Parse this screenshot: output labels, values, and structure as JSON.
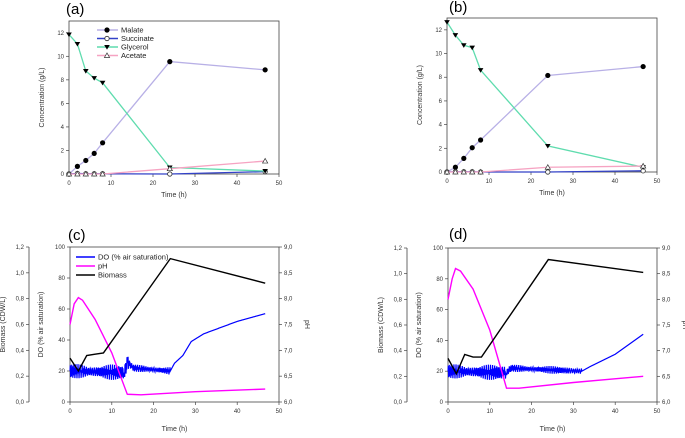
{
  "chart_data": [
    {
      "panel": "(a)",
      "type": "line",
      "xlabel": "Time (h)",
      "ylabel": "Concentration (g/L)",
      "xlim": [
        0,
        50
      ],
      "ylim": [
        0,
        13
      ],
      "xticks": [
        0,
        10,
        20,
        30,
        40,
        50
      ],
      "yticks": [
        0,
        2,
        4,
        6,
        8,
        10,
        12
      ],
      "legend": "top-left",
      "x": [
        0,
        2,
        4,
        6,
        8,
        24,
        46.7
      ],
      "series": [
        {
          "name": "Malate",
          "color": "#b8b0e6",
          "marker": "filled-circle",
          "values": [
            0,
            0.65,
            1.15,
            1.75,
            2.65,
            9.55,
            8.85
          ]
        },
        {
          "name": "Succinate",
          "color": "#3342c8",
          "marker": "open-circle",
          "values": [
            0,
            0.05,
            0.02,
            0.02,
            0.02,
            0,
            0.2
          ]
        },
        {
          "name": "Glycerol",
          "color": "#5fdcae",
          "marker": "filled-triangle-down",
          "values": [
            11.85,
            11.05,
            8.75,
            8.15,
            7.75,
            0.55,
            0.25
          ]
        },
        {
          "name": "Acetate",
          "color": "#f6a3c2",
          "marker": "open-triangle-up",
          "values": [
            0,
            0,
            0,
            0,
            0,
            0.45,
            1.1
          ]
        }
      ]
    },
    {
      "panel": "(b)",
      "type": "line",
      "xlabel": "Time (h)",
      "ylabel": "Concentration (g/L)",
      "xlim": [
        0,
        50
      ],
      "ylim": [
        0,
        13
      ],
      "xticks": [
        0,
        10,
        20,
        30,
        40,
        50
      ],
      "yticks": [
        0,
        2,
        4,
        6,
        8,
        10,
        12
      ],
      "x": [
        0,
        2,
        4,
        6,
        8,
        24,
        46.7
      ],
      "series": [
        {
          "color": "#b8b0e6",
          "marker": "filled-circle",
          "values": [
            0,
            0.4,
            1.15,
            2.05,
            2.7,
            8.15,
            8.9
          ]
        },
        {
          "color": "#3342c8",
          "marker": "open-circle",
          "values": [
            0,
            0.02,
            0.02,
            0.02,
            0,
            0,
            0.1
          ]
        },
        {
          "color": "#5fdcae",
          "marker": "filled-triangle-down",
          "values": [
            12.65,
            11.55,
            10.7,
            10.5,
            8.6,
            2.2,
            0.4
          ]
        },
        {
          "color": "#f6a3c2",
          "marker": "open-triangle-up",
          "values": [
            0,
            0,
            0,
            0,
            0,
            0.4,
            0.5
          ]
        }
      ]
    },
    {
      "panel": "(c)",
      "type": "line",
      "xlabel": "Time (h)",
      "ylabel": "DO (% air saturation)",
      "y2label": "pH",
      "y3label": "Biomass (CDW/L)",
      "xlim": [
        0,
        50
      ],
      "ylim": [
        0,
        100
      ],
      "y2lim": [
        6,
        9
      ],
      "y3lim": [
        0,
        1.2
      ],
      "legend": "top-left",
      "xticks": [
        0,
        10,
        20,
        30,
        40,
        50
      ],
      "yticks": [
        0,
        20,
        40,
        60,
        80,
        100
      ],
      "y2ticks": [
        "6,0",
        "6,5",
        "7,0",
        "7,5",
        "8,0",
        "8,5",
        "9,0"
      ],
      "y3ticks": [
        "0,0",
        "0,2",
        "0,4",
        "0,6",
        "0,8",
        "1,0",
        "1,2"
      ],
      "series": [
        {
          "name": "DO (% air saturation)",
          "color": "#0000ff",
          "axis": "DO",
          "points": [
            [
              0,
              20
            ],
            [
              13,
              19
            ],
            [
              13.8,
              26
            ],
            [
              15,
              22
            ],
            [
              24,
              20
            ],
            [
              25,
              25
            ],
            [
              27,
              30
            ],
            [
              29,
              39
            ],
            [
              32,
              44
            ],
            [
              40,
              52
            ],
            [
              46.7,
              57
            ]
          ]
        },
        {
          "name": "pH",
          "color": "#ff00ff",
          "axis": "pH",
          "points": [
            [
              0,
              7.5
            ],
            [
              1,
              7.9
            ],
            [
              2,
              8.02
            ],
            [
              3,
              7.97
            ],
            [
              6,
              7.6
            ],
            [
              10,
              6.95
            ],
            [
              13.7,
              6.15
            ],
            [
              17,
              6.14
            ],
            [
              30,
              6.2
            ],
            [
              46.7,
              6.25
            ]
          ]
        },
        {
          "name": "Biomass",
          "color": "#000000",
          "axis": "Biomass",
          "points": [
            [
              0,
              0.34
            ],
            [
              2,
              0.24
            ],
            [
              4,
              0.36
            ],
            [
              6,
              0.37
            ],
            [
              8,
              0.38
            ],
            [
              24,
              1.11
            ],
            [
              46.7,
              0.92
            ]
          ]
        }
      ]
    },
    {
      "panel": "(d)",
      "type": "line",
      "xlabel": "Time (h)",
      "ylabel": "DO (% air saturation)",
      "y2label": "pH",
      "y3label": "Biomass (CDW/L)",
      "xlim": [
        0,
        50
      ],
      "ylim": [
        0,
        100
      ],
      "y2lim": [
        6,
        9
      ],
      "y3lim": [
        0,
        1.2
      ],
      "xticks": [
        0,
        10,
        20,
        30,
        40,
        50
      ],
      "yticks": [
        0,
        20,
        40,
        60,
        80,
        100
      ],
      "y2ticks": [
        "6,0",
        "6,5",
        "7,0",
        "7,5",
        "8,0",
        "8,5",
        "9,0"
      ],
      "y3ticks": [
        "0,0",
        "0,2",
        "0,4",
        "0,6",
        "0,8",
        "1,0",
        "1,2"
      ],
      "series": [
        {
          "color": "#0000ff",
          "axis": "DO",
          "points": [
            [
              0,
              20
            ],
            [
              14,
              19
            ],
            [
              15,
              22
            ],
            [
              32,
              20
            ],
            [
              34,
              23
            ],
            [
              40,
              31
            ],
            [
              46.7,
              44
            ]
          ]
        },
        {
          "color": "#ff00ff",
          "axis": "pH",
          "points": [
            [
              0,
              8.0
            ],
            [
              1,
              8.4
            ],
            [
              1.8,
              8.6
            ],
            [
              3,
              8.55
            ],
            [
              6,
              8.2
            ],
            [
              10,
              7.4
            ],
            [
              14,
              6.27
            ],
            [
              17,
              6.27
            ],
            [
              30,
              6.38
            ],
            [
              46.7,
              6.5
            ]
          ]
        },
        {
          "color": "#000000",
          "axis": "Biomass",
          "points": [
            [
              0,
              0.34
            ],
            [
              2,
              0.22
            ],
            [
              4,
              0.37
            ],
            [
              6,
              0.35
            ],
            [
              8,
              0.35
            ],
            [
              24,
              1.11
            ],
            [
              46.7,
              1.01
            ]
          ]
        }
      ]
    }
  ]
}
